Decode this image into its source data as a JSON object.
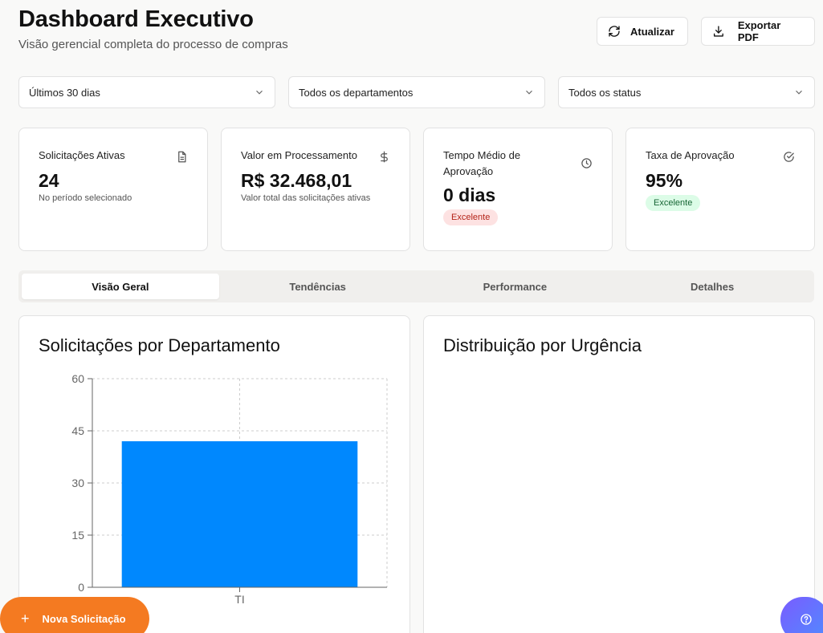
{
  "header": {
    "title": "Dashboard Executivo",
    "subtitle": "Visão gerencial completa do processo de compras"
  },
  "actions": {
    "refresh_label": "Atualizar",
    "export_label": "Exportar PDF"
  },
  "filters": {
    "period": "Últimos 30 dias",
    "department": "Todos os departamentos",
    "status": "Todos os status"
  },
  "cards": [
    {
      "title": "Solicitações Ativas",
      "value": "24",
      "note": "No período selecionado",
      "icon": "document-icon"
    },
    {
      "title": "Valor em Processamento",
      "value": "R$ 32.468,01",
      "note": "Valor total das solicitações ativas",
      "icon": "dollar-icon"
    },
    {
      "title": "Tempo Médio de Aprovação",
      "value": "0 dias",
      "badge": "Excelente",
      "badge_color": "#fde2e2",
      "icon": "clock-icon"
    },
    {
      "title": "Taxa de Aprovação",
      "value": "95%",
      "badge": "Excelente",
      "badge_color": "#dcfce7",
      "icon": "check-circle-icon"
    }
  ],
  "tabs": [
    "Visão Geral",
    "Tendências",
    "Performance",
    "Detalhes"
  ],
  "panels": {
    "left_title": "Solicitações por Departamento",
    "right_title": "Distribuição por Urgência"
  },
  "chart_data": {
    "type": "bar",
    "categories": [
      "TI"
    ],
    "values": [
      42
    ],
    "ylim": [
      0,
      60
    ],
    "yticks": [
      "0",
      "15",
      "30",
      "45",
      "60"
    ],
    "bar_color": "#0088fe",
    "grid": true
  },
  "fab": {
    "label": "Nova Solicitação"
  },
  "colors": {
    "accent": "#f47a21",
    "bar": "#0088fe"
  }
}
